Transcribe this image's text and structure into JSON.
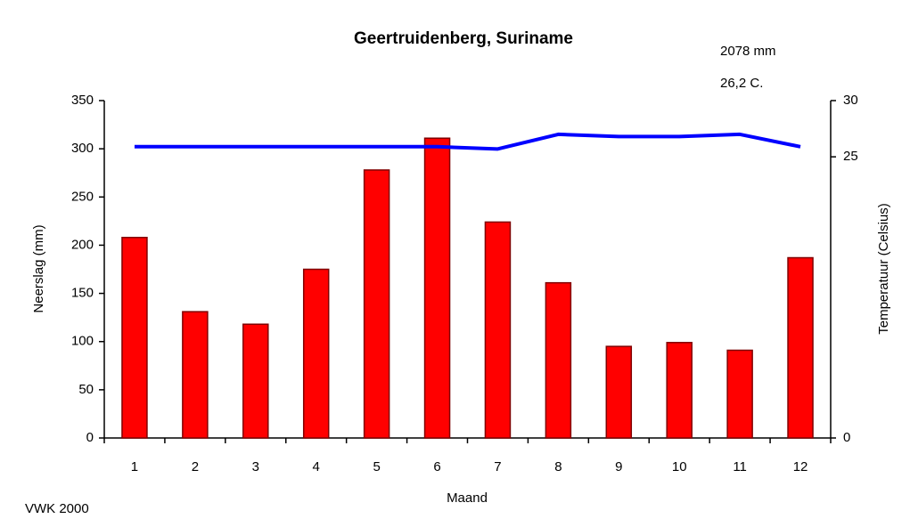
{
  "chart_data": {
    "type": "bar",
    "title": "Geertruidenberg, Suriname",
    "annotations": [
      "2078 mm",
      "26,2 C."
    ],
    "source": "VWK 2000",
    "x_label": "Maand",
    "y_label": "Neerslag (mm)",
    "y2_label": "Temperatuur (Celsius)",
    "categories": [
      "1",
      "2",
      "3",
      "4",
      "5",
      "6",
      "7",
      "8",
      "9",
      "10",
      "11",
      "12"
    ],
    "series": [
      {
        "color": "#ff0000",
        "values": [
          208,
          131,
          118,
          175,
          278,
          311,
          224,
          161,
          95,
          99,
          91,
          187
        ]
      },
      {
        "color": "#0000ff",
        "type": "line",
        "axis": "y2",
        "values": [
          25.9,
          25.9,
          25.9,
          25.9,
          25.9,
          25.9,
          25.7,
          27.0,
          26.8,
          26.8,
          27.0,
          25.9
        ]
      }
    ],
    "ylim": [
      0,
      350
    ],
    "yticks": [
      0,
      50,
      100,
      150,
      200,
      250,
      300,
      350
    ],
    "y2lim": [
      0,
      30
    ],
    "y2ticks": [
      0,
      25,
      30
    ]
  }
}
